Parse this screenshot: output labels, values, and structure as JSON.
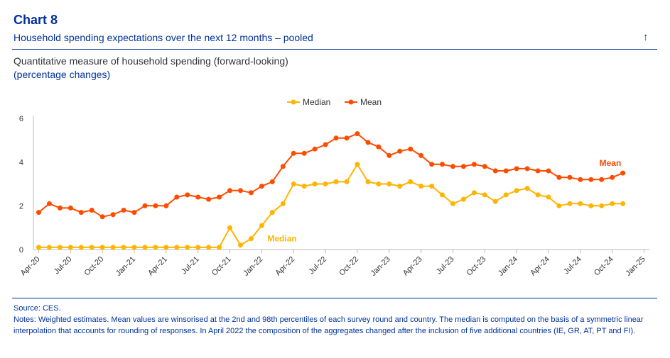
{
  "header": {
    "chart_number": "Chart 8",
    "title": "Household spending expectations over the next 12 months – pooled",
    "subtitle": "Quantitative measure of household spending (forward-looking)",
    "unit": "(percentage changes)",
    "arrow_icon": "up-arrow-icon"
  },
  "footer": {
    "source": "Source: CES.",
    "notes": "Notes: Weighted estimates. Mean values are winsorised at the 2nd and 98th percentiles of each survey round and country. The median is computed on the basis of a symmetric linear interpolation that accounts for rounding of responses. In April 2022 the composition of the aggregates changed after the inclusion of five additional countries (IE, GR, AT, PT and FI)."
  },
  "chart_data": {
    "type": "line",
    "x_ticks": [
      "Apr-20",
      "Jul-20",
      "Oct-20",
      "Jan-21",
      "Apr-21",
      "Jul-21",
      "Oct-21",
      "Jan-22",
      "Apr-22",
      "Jul-22",
      "Oct-22",
      "Jan-23",
      "Apr-23",
      "Jul-23",
      "Oct-23",
      "Jan-24",
      "Apr-24",
      "Jul-24",
      "Oct-24",
      "Jan-25"
    ],
    "y_ticks": [
      "0",
      "2",
      "4",
      "6"
    ],
    "ylim": [
      0,
      6
    ],
    "x_start": "Apr-20",
    "x_end": "Jan-25",
    "grid": "off",
    "legend": "top-center",
    "series": [
      {
        "name": "Median",
        "color": "#FFB400",
        "annotation": "Median",
        "values": [
          0.1,
          0.1,
          0.1,
          0.1,
          0.1,
          0.1,
          0.1,
          0.1,
          0.1,
          0.1,
          0.1,
          0.1,
          0.1,
          0.1,
          0.1,
          0.1,
          0.1,
          0.1,
          1.0,
          0.2,
          0.5,
          1.1,
          1.7,
          2.1,
          3.0,
          2.9,
          3.0,
          3.0,
          3.1,
          3.1,
          3.9,
          3.1,
          3.0,
          3.0,
          2.9,
          3.1,
          2.9,
          2.9,
          2.5,
          2.1,
          2.3,
          2.6,
          2.5,
          2.2,
          2.5,
          2.7,
          2.8,
          2.5,
          2.4,
          2.0,
          2.1,
          2.1,
          2.0,
          2.0,
          2.1,
          2.1
        ]
      },
      {
        "name": "Mean",
        "color": "#FF4B00",
        "annotation": "Mean",
        "values": [
          1.7,
          2.1,
          1.9,
          1.9,
          1.7,
          1.8,
          1.5,
          1.6,
          1.8,
          1.7,
          2.0,
          2.0,
          2.0,
          2.4,
          2.5,
          2.4,
          2.3,
          2.4,
          2.7,
          2.7,
          2.6,
          2.9,
          3.1,
          3.8,
          4.4,
          4.4,
          4.6,
          4.8,
          5.1,
          5.1,
          5.3,
          4.9,
          4.7,
          4.3,
          4.5,
          4.6,
          4.3,
          3.9,
          3.9,
          3.8,
          3.8,
          3.9,
          3.8,
          3.6,
          3.6,
          3.7,
          3.7,
          3.6,
          3.6,
          3.3,
          3.3,
          3.2,
          3.2,
          3.2,
          3.3,
          3.5
        ]
      }
    ]
  }
}
